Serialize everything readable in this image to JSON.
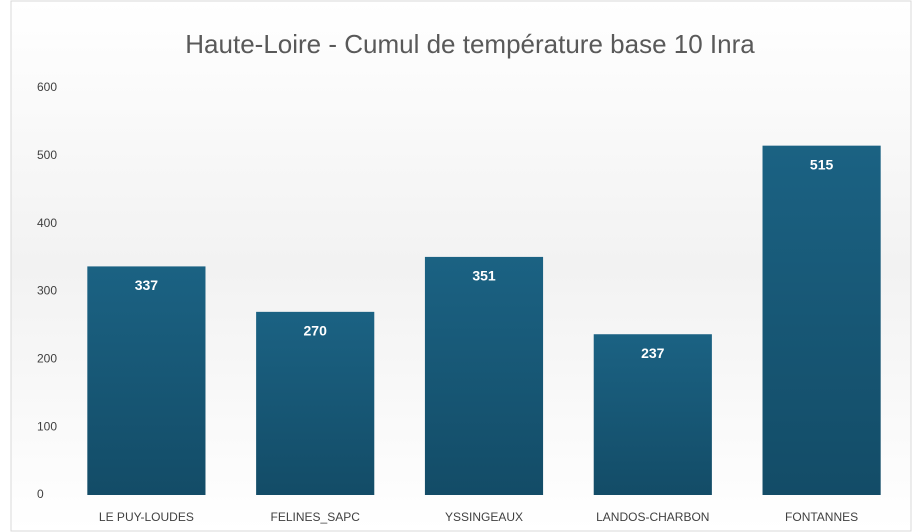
{
  "chart_data": {
    "type": "bar",
    "title": "Haute-Loire - Cumul de température base 10 Inra",
    "categories": [
      "LE PUY-LOUDES",
      "FELINES_SAPC",
      "YSSINGEAUX",
      "LANDOS-CHARBON",
      "FONTANNES"
    ],
    "values": [
      337,
      270,
      351,
      237,
      515
    ],
    "color": "#175a79",
    "ylim": [
      0,
      600
    ],
    "yticks": [
      0,
      100,
      200,
      300,
      400,
      500,
      600
    ],
    "grid": false
  }
}
